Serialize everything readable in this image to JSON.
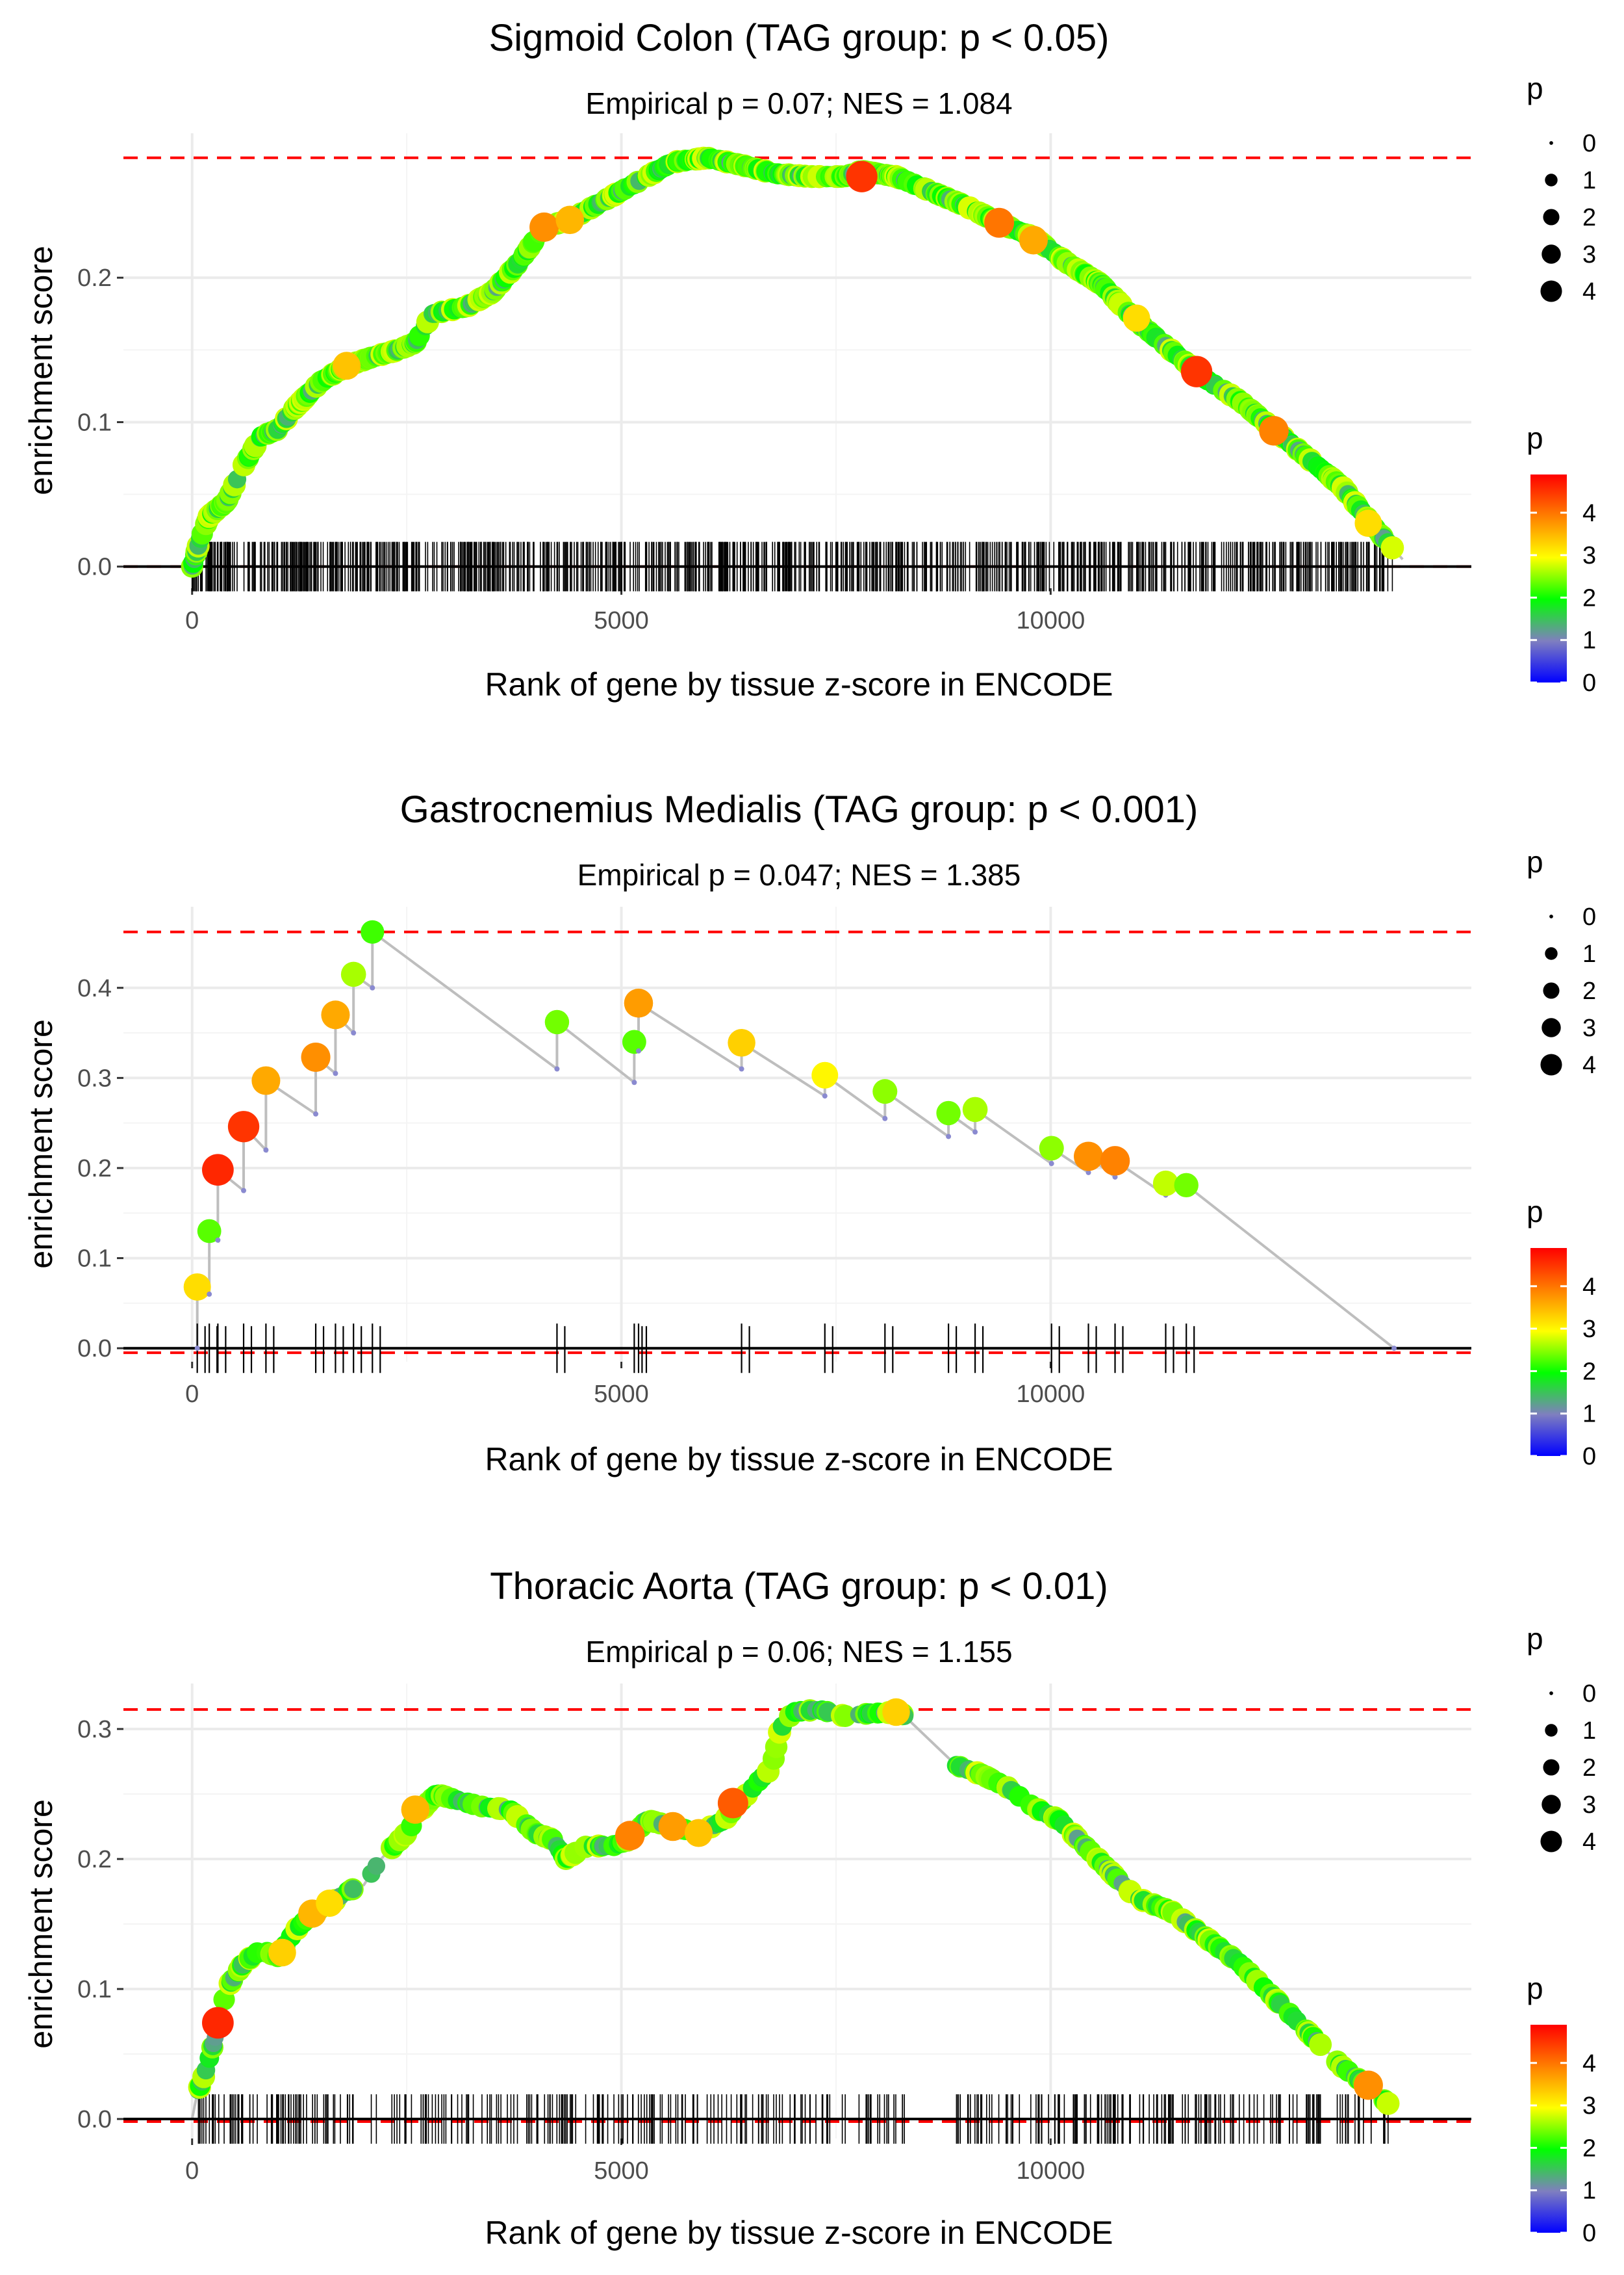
{
  "common": {
    "xlabel": "Rank of gene by tissue z-score in ENCODE",
    "ylabel": "enrichment score",
    "legend_size_title": "p",
    "legend_color_title": "p",
    "size_legend_labels": [
      "0",
      "1",
      "2",
      "3",
      "4"
    ],
    "color_legend_labels": [
      "4",
      "3",
      "2",
      "1",
      "0"
    ],
    "colors": {
      "reference_line": "#ff0000",
      "curve": "#bebebe",
      "axis_line": "#000000",
      "grid": "#ebebeb",
      "gradient": [
        "#0000ff",
        "#7f7fbf",
        "#00ff00",
        "#ffff00",
        "#ff7f00",
        "#ff0000"
      ]
    }
  },
  "chart_data": [
    {
      "type": "scatter",
      "title": "Sigmoid Colon (TAG group: p < 0.05)",
      "subtitle": "Empirical p = 0.07; NES = 1.084",
      "xlim": [
        -800,
        14900
      ],
      "ylim": [
        -0.015,
        0.3
      ],
      "xticks": [
        0,
        5000,
        10000
      ],
      "xtick_labels": [
        "0",
        "5000",
        "10000"
      ],
      "yticks": [
        0.0,
        0.1,
        0.2
      ],
      "ytick_labels": [
        "0.0",
        "0.1",
        "0.2"
      ],
      "max_es": 0.283,
      "min_es": 0.0,
      "n_genes": 14000,
      "n_hits": 900,
      "seed": 7,
      "curve": [
        [
          0,
          0.0
        ],
        [
          100,
          0.02
        ],
        [
          200,
          0.035
        ],
        [
          400,
          0.045
        ],
        [
          600,
          0.07
        ],
        [
          800,
          0.09
        ],
        [
          1000,
          0.095
        ],
        [
          1200,
          0.11
        ],
        [
          1500,
          0.128
        ],
        [
          1800,
          0.139
        ],
        [
          2100,
          0.145
        ],
        [
          2400,
          0.15
        ],
        [
          2600,
          0.155
        ],
        [
          2800,
          0.175
        ],
        [
          3200,
          0.18
        ],
        [
          3500,
          0.19
        ],
        [
          3800,
          0.21
        ],
        [
          4100,
          0.235
        ],
        [
          4400,
          0.24
        ],
        [
          4700,
          0.25
        ],
        [
          5000,
          0.26
        ],
        [
          5300,
          0.27
        ],
        [
          5600,
          0.28
        ],
        [
          6000,
          0.283
        ],
        [
          6400,
          0.278
        ],
        [
          6800,
          0.272
        ],
        [
          7200,
          0.27
        ],
        [
          7600,
          0.27
        ],
        [
          7800,
          0.274
        ],
        [
          8200,
          0.27
        ],
        [
          8600,
          0.26
        ],
        [
          9000,
          0.25
        ],
        [
          9400,
          0.238
        ],
        [
          9800,
          0.228
        ],
        [
          10200,
          0.21
        ],
        [
          10600,
          0.195
        ],
        [
          11000,
          0.17
        ],
        [
          11400,
          0.15
        ],
        [
          11800,
          0.13
        ],
        [
          12200,
          0.115
        ],
        [
          12600,
          0.095
        ],
        [
          13000,
          0.075
        ],
        [
          13400,
          0.055
        ],
        [
          13800,
          0.025
        ],
        [
          14100,
          0.005
        ]
      ],
      "highlight_points": [
        [
          4100,
          0.235,
          3.8
        ],
        [
          4400,
          0.24,
          3.5
        ],
        [
          1800,
          0.139,
          3.4
        ],
        [
          7800,
          0.27,
          4.5
        ],
        [
          9400,
          0.238,
          4.0
        ],
        [
          9800,
          0.226,
          3.6
        ],
        [
          11700,
          0.135,
          4.5
        ],
        [
          12600,
          0.094,
          3.9
        ],
        [
          11000,
          0.172,
          3.2
        ],
        [
          13700,
          0.03,
          3.2
        ]
      ]
    },
    {
      "type": "scatter",
      "title": "Gastrocnemius Medialis (TAG group: p < 0.001)",
      "subtitle": "Empirical p = 0.047; NES = 1.385",
      "xlim": [
        -800,
        14900
      ],
      "ylim": [
        -0.015,
        0.49
      ],
      "xticks": [
        0,
        5000,
        10000
      ],
      "xtick_labels": [
        "0",
        "5000",
        "10000"
      ],
      "yticks": [
        0.0,
        0.1,
        0.2,
        0.3,
        0.4
      ],
      "ytick_labels": [
        "0.0",
        "0.1",
        "0.2",
        "0.3",
        "0.4"
      ],
      "max_es": 0.462,
      "min_es": -0.005,
      "n_genes": 14000,
      "steps": [
        [
          60,
          0.0,
          0.068,
          3.2
        ],
        [
          200,
          0.06,
          0.13,
          2.3
        ],
        [
          300,
          0.12,
          0.198,
          4.6
        ],
        [
          600,
          0.175,
          0.246,
          4.5
        ],
        [
          860,
          0.22,
          0.297,
          3.6
        ],
        [
          1440,
          0.26,
          0.323,
          3.8
        ],
        [
          1670,
          0.305,
          0.37,
          3.6
        ],
        [
          1880,
          0.35,
          0.415,
          2.6
        ],
        [
          2100,
          0.4,
          0.462,
          2.2
        ],
        [
          4250,
          0.31,
          0.362,
          2.4
        ],
        [
          5150,
          0.295,
          0.34,
          2.3
        ],
        [
          5200,
          0.33,
          0.383,
          3.7
        ],
        [
          6400,
          0.31,
          0.339,
          3.3
        ],
        [
          7370,
          0.28,
          0.303,
          3.0
        ],
        [
          8070,
          0.255,
          0.285,
          2.5
        ],
        [
          8810,
          0.235,
          0.261,
          2.4
        ],
        [
          9120,
          0.24,
          0.265,
          2.6
        ],
        [
          10010,
          0.205,
          0.222,
          2.5
        ],
        [
          10440,
          0.195,
          0.213,
          3.8
        ],
        [
          10750,
          0.19,
          0.208,
          3.9
        ],
        [
          11340,
          0.17,
          0.183,
          2.7
        ],
        [
          11580,
          0.175,
          0.181,
          2.4
        ]
      ],
      "end_point": [
        14000,
        0.0
      ]
    },
    {
      "type": "scatter",
      "title": "Thoracic Aorta (TAG group: p < 0.01)",
      "subtitle": "Empirical p = 0.06; NES = 1.155",
      "xlim": [
        -800,
        14900
      ],
      "ylim": [
        -0.015,
        0.335
      ],
      "xticks": [
        0,
        5000,
        10000
      ],
      "xtick_labels": [
        "0",
        "5000",
        "10000"
      ],
      "yticks": [
        0.0,
        0.1,
        0.2,
        0.3
      ],
      "ytick_labels": [
        "0.0",
        "0.1",
        "0.2",
        "0.3"
      ],
      "max_es": 0.315,
      "min_es": -0.002,
      "n_genes": 14000,
      "n_hits": 420,
      "seed": 11,
      "gaps": [
        [
          8300,
          8900
        ]
      ],
      "curve": [
        [
          0,
          0.0
        ],
        [
          60,
          0.02
        ],
        [
          150,
          0.035
        ],
        [
          300,
          0.07
        ],
        [
          400,
          0.1
        ],
        [
          600,
          0.12
        ],
        [
          800,
          0.13
        ],
        [
          1000,
          0.125
        ],
        [
          1200,
          0.145
        ],
        [
          1400,
          0.158
        ],
        [
          1600,
          0.165
        ],
        [
          1800,
          0.175
        ],
        [
          2000,
          0.18
        ],
        [
          2200,
          0.2
        ],
        [
          2500,
          0.22
        ],
        [
          2700,
          0.24
        ],
        [
          2850,
          0.25
        ],
        [
          3100,
          0.245
        ],
        [
          3400,
          0.24
        ],
        [
          3700,
          0.238
        ],
        [
          4000,
          0.22
        ],
        [
          4200,
          0.215
        ],
        [
          4350,
          0.2
        ],
        [
          4600,
          0.21
        ],
        [
          4900,
          0.21
        ],
        [
          5100,
          0.215
        ],
        [
          5300,
          0.23
        ],
        [
          5600,
          0.225
        ],
        [
          5900,
          0.22
        ],
        [
          6200,
          0.23
        ],
        [
          6400,
          0.245
        ],
        [
          6600,
          0.26
        ],
        [
          6750,
          0.27
        ],
        [
          6850,
          0.3
        ],
        [
          7000,
          0.313
        ],
        [
          7300,
          0.315
        ],
        [
          7600,
          0.31
        ],
        [
          7900,
          0.312
        ],
        [
          8250,
          0.313
        ],
        [
          8900,
          0.272
        ],
        [
          9200,
          0.265
        ],
        [
          9500,
          0.255
        ],
        [
          9800,
          0.24
        ],
        [
          10100,
          0.23
        ],
        [
          10400,
          0.21
        ],
        [
          10700,
          0.19
        ],
        [
          11000,
          0.17
        ],
        [
          11400,
          0.16
        ],
        [
          11800,
          0.14
        ],
        [
          12200,
          0.12
        ],
        [
          12500,
          0.1
        ],
        [
          12800,
          0.08
        ],
        [
          13100,
          0.06
        ],
        [
          13400,
          0.04
        ],
        [
          13700,
          0.025
        ],
        [
          14000,
          0.008
        ]
      ],
      "highlight_points": [
        [
          300,
          0.074,
          4.6
        ],
        [
          1050,
          0.128,
          3.3
        ],
        [
          1400,
          0.158,
          3.5
        ],
        [
          1600,
          0.166,
          3.2
        ],
        [
          2600,
          0.238,
          3.5
        ],
        [
          5100,
          0.218,
          3.9
        ],
        [
          5600,
          0.225,
          3.7
        ],
        [
          5900,
          0.22,
          3.4
        ],
        [
          6300,
          0.243,
          4.2
        ],
        [
          8200,
          0.313,
          3.3
        ],
        [
          13700,
          0.026,
          3.8
        ]
      ]
    }
  ]
}
